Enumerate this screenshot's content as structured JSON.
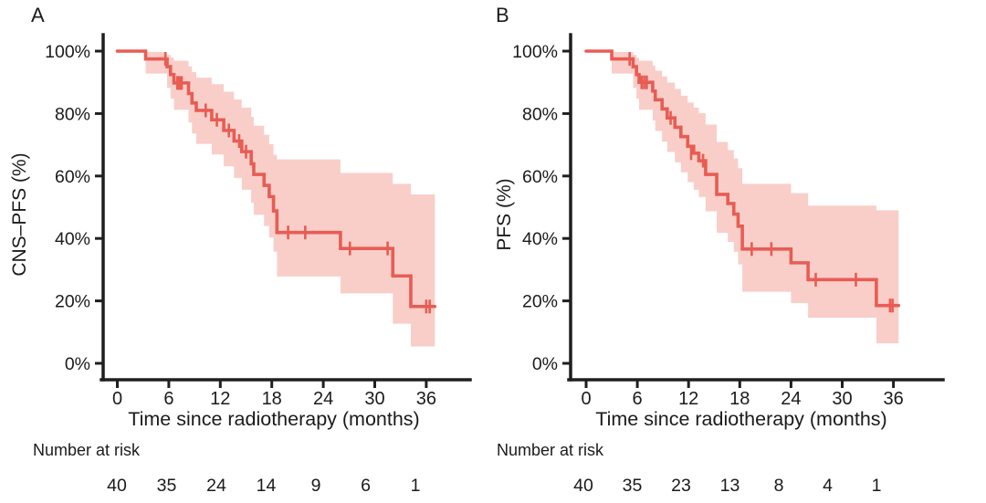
{
  "figure": {
    "background": "#ffffff"
  },
  "chart_data": [
    {
      "panel": "A",
      "type": "line",
      "subtype": "kaplan_meier_step_with_confidence_band",
      "title": "",
      "xlabel": "Time since radiotherapy (months)",
      "ylabel": "CNS–PFS (%)",
      "xlim": [
        0,
        39
      ],
      "ylim": [
        0,
        100
      ],
      "grid": "off",
      "legend": "none",
      "xticks": [
        0,
        6,
        12,
        18,
        24,
        30,
        36
      ],
      "yticks": [
        100,
        80,
        60,
        40,
        20,
        0
      ],
      "ytick_labels": [
        "100%",
        "80%",
        "60%",
        "40%",
        "20%",
        "0%"
      ],
      "line_color": "#e85c54",
      "ci_color": "#f9cec9",
      "curve_end_time": 37.0,
      "steps_time_pct": [
        [
          0,
          100
        ],
        [
          3.3,
          97.5
        ],
        [
          5.8,
          95.0
        ],
        [
          6.2,
          92.5
        ],
        [
          6.6,
          89.8
        ],
        [
          8.3,
          86.4
        ],
        [
          8.7,
          83.4
        ],
        [
          9.2,
          81.0
        ],
        [
          11.0,
          78.0
        ],
        [
          12.4,
          74.6
        ],
        [
          13.6,
          71.2
        ],
        [
          14.5,
          67.8
        ],
        [
          15.6,
          63.9
        ],
        [
          15.9,
          60.5
        ],
        [
          17.1,
          57.0
        ],
        [
          17.7,
          53.4
        ],
        [
          18.2,
          48.8
        ],
        [
          18.6,
          41.9
        ],
        [
          26.0,
          36.8
        ],
        [
          32.1,
          28.0
        ],
        [
          34.2,
          18.2
        ]
      ],
      "censor_marks_time_pct": [
        [
          5.6,
          97.5
        ],
        [
          7.0,
          89.8
        ],
        [
          7.25,
          89.8
        ],
        [
          7.5,
          89.8
        ],
        [
          10.3,
          81.0
        ],
        [
          11.6,
          78.0
        ],
        [
          13.0,
          74.6
        ],
        [
          14.2,
          71.2
        ],
        [
          15.0,
          67.8
        ],
        [
          19.9,
          41.9
        ],
        [
          21.9,
          41.9
        ],
        [
          27.1,
          36.8
        ],
        [
          31.5,
          36.8
        ],
        [
          36.0,
          18.2
        ],
        [
          36.4,
          18.2
        ]
      ],
      "ci_time_lo_hi": [
        [
          3.3,
          92.8,
          99.7
        ],
        [
          5.8,
          88.2,
          98.8
        ],
        [
          6.2,
          84.8,
          97.9
        ],
        [
          6.6,
          81.2,
          96.9
        ],
        [
          8.3,
          77.2,
          95.1
        ],
        [
          8.7,
          73.6,
          93.3
        ],
        [
          9.2,
          70.3,
          91.5
        ],
        [
          11.0,
          66.9,
          89.4
        ],
        [
          12.4,
          63.1,
          87.0
        ],
        [
          13.6,
          59.4,
          84.5
        ],
        [
          14.5,
          55.6,
          81.9
        ],
        [
          15.6,
          51.4,
          78.9
        ],
        [
          15.9,
          47.6,
          76.1
        ],
        [
          17.1,
          44.0,
          73.2
        ],
        [
          17.7,
          40.3,
          70.2
        ],
        [
          18.2,
          35.8,
          66.8
        ],
        [
          18.6,
          27.8,
          65.3
        ],
        [
          26.0,
          22.4,
          61.0
        ],
        [
          32.1,
          12.7,
          57.5
        ],
        [
          34.2,
          5.4,
          54.1
        ]
      ],
      "risk_label": "Number at risk",
      "risk_times": [
        0,
        6,
        12,
        18,
        24,
        30,
        36
      ],
      "risk_counts": [
        40,
        35,
        24,
        14,
        9,
        6,
        1
      ]
    },
    {
      "panel": "B",
      "type": "line",
      "subtype": "kaplan_meier_step_with_confidence_band",
      "title": "",
      "xlabel": "Time since radiotherapy (months)",
      "ylabel": "PFS (%)",
      "xlim": [
        0,
        39
      ],
      "ylim": [
        0,
        100
      ],
      "grid": "off",
      "legend": "none",
      "xticks": [
        0,
        6,
        12,
        18,
        24,
        30,
        36
      ],
      "yticks": [
        100,
        80,
        60,
        40,
        20,
        0
      ],
      "ytick_labels": [
        "100%",
        "80%",
        "60%",
        "40%",
        "20%",
        "0%"
      ],
      "line_color": "#e85c54",
      "ci_color": "#f9cec9",
      "curve_end_time": 36.6,
      "steps_time_pct": [
        [
          0,
          100
        ],
        [
          3.0,
          97.5
        ],
        [
          5.5,
          95.0
        ],
        [
          5.9,
          92.5
        ],
        [
          6.2,
          90.0
        ],
        [
          7.8,
          87.2
        ],
        [
          8.1,
          84.4
        ],
        [
          8.9,
          81.5
        ],
        [
          9.5,
          78.6
        ],
        [
          10.4,
          75.6
        ],
        [
          11.1,
          72.6
        ],
        [
          11.9,
          69.5
        ],
        [
          12.6,
          67.3
        ],
        [
          13.2,
          64.9
        ],
        [
          14.0,
          60.5
        ],
        [
          15.3,
          54.1
        ],
        [
          16.6,
          51.2
        ],
        [
          17.3,
          47.8
        ],
        [
          17.8,
          43.9
        ],
        [
          18.3,
          36.6
        ],
        [
          24.0,
          32.2
        ],
        [
          26.0,
          26.8
        ],
        [
          34.0,
          18.5
        ]
      ],
      "censor_marks_time_pct": [
        [
          5.1,
          97.5
        ],
        [
          6.5,
          90.0
        ],
        [
          6.8,
          90.0
        ],
        [
          7.1,
          90.0
        ],
        [
          9.9,
          78.6
        ],
        [
          12.3,
          67.3
        ],
        [
          13.7,
          64.9
        ],
        [
          19.4,
          36.6
        ],
        [
          21.7,
          36.6
        ],
        [
          26.9,
          26.8
        ],
        [
          31.6,
          26.8
        ],
        [
          35.6,
          18.5
        ],
        [
          35.9,
          18.5
        ]
      ],
      "ci_time_lo_hi": [
        [
          3.0,
          92.8,
          99.7
        ],
        [
          5.5,
          88.2,
          98.8
        ],
        [
          5.9,
          84.8,
          97.9
        ],
        [
          6.2,
          81.2,
          96.9
        ],
        [
          7.8,
          77.8,
          95.4
        ],
        [
          8.1,
          74.4,
          93.7
        ],
        [
          8.9,
          71.0,
          91.9
        ],
        [
          9.5,
          67.7,
          89.9
        ],
        [
          10.4,
          64.4,
          87.9
        ],
        [
          11.1,
          61.2,
          85.7
        ],
        [
          11.9,
          58.0,
          83.5
        ],
        [
          12.6,
          55.6,
          81.9
        ],
        [
          13.2,
          53.3,
          80.1
        ],
        [
          14.0,
          48.7,
          76.5
        ],
        [
          15.3,
          41.8,
          70.9
        ],
        [
          16.6,
          38.9,
          68.3
        ],
        [
          17.3,
          35.7,
          65.6
        ],
        [
          17.8,
          31.7,
          62.5
        ],
        [
          18.3,
          22.9,
          57.5
        ],
        [
          24.0,
          19.3,
          54.5
        ],
        [
          26.0,
          14.6,
          50.5
        ],
        [
          34.0,
          6.4,
          49.0
        ]
      ],
      "risk_label": "Number at risk",
      "risk_times": [
        0,
        6,
        12,
        18,
        24,
        30,
        36
      ],
      "risk_counts": [
        40,
        35,
        23,
        13,
        8,
        4,
        1
      ]
    }
  ]
}
